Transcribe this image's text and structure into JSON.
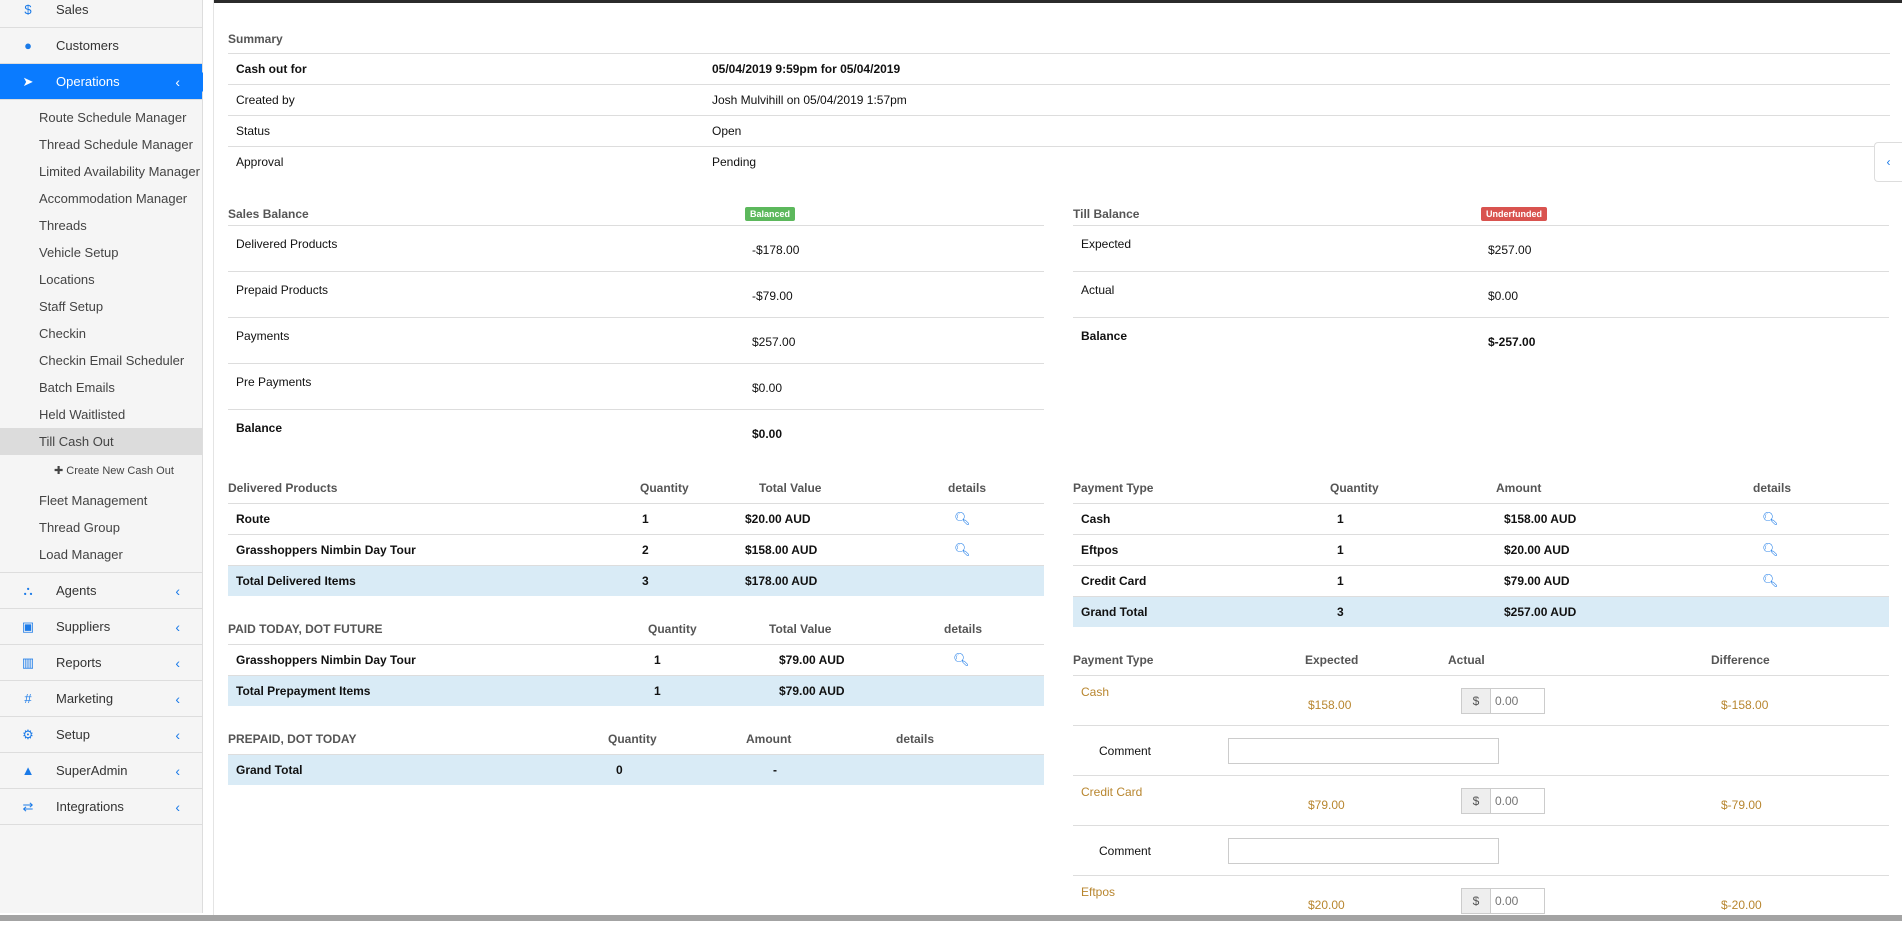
{
  "sidebar": {
    "top_items": [
      {
        "label": "Sales",
        "icon": "dollar-icon"
      },
      {
        "label": "Customers",
        "icon": "user-icon"
      },
      {
        "label": "Operations",
        "icon": "paper-plane-icon"
      }
    ],
    "sub_items": [
      "Route Schedule Manager",
      "Thread Schedule Manager",
      "Limited Availability Manager",
      "Accommodation Manager",
      "Threads",
      "Vehicle Setup",
      "Locations",
      "Staff Setup",
      "Checkin",
      "Checkin Email Scheduler",
      "Batch Emails",
      "Held Waitlisted",
      "Till Cash Out"
    ],
    "create_label": "Create New Cash Out",
    "sub_items2": [
      "Fleet Management",
      "Thread Group",
      "Load Manager"
    ],
    "bottom_items": [
      {
        "label": "Agents"
      },
      {
        "label": "Suppliers"
      },
      {
        "label": "Reports"
      },
      {
        "label": "Marketing"
      },
      {
        "label": "Setup"
      },
      {
        "label": "SuperAdmin"
      },
      {
        "label": "Integrations"
      }
    ]
  },
  "summary": {
    "title": "Summary",
    "rows": [
      {
        "label": "Cash out for",
        "value": "05/04/2019 9:59pm for 05/04/2019",
        "bold": true
      },
      {
        "label": "Created by",
        "value": "Josh Mulvihill on 05/04/2019 1:57pm"
      },
      {
        "label": "Status",
        "value": "Open"
      },
      {
        "label": "Approval",
        "value": "Pending"
      }
    ]
  },
  "sales_balance": {
    "title": "Sales Balance",
    "badge": "Balanced",
    "badge_color": "#5cb85c",
    "rows": [
      {
        "label": "Delivered Products",
        "value": "-$178.00"
      },
      {
        "label": "Prepaid Products",
        "value": "-$79.00"
      },
      {
        "label": "Payments",
        "value": "$257.00"
      },
      {
        "label": "Pre Payments",
        "value": "$0.00"
      },
      {
        "label": "Balance",
        "value": "$0.00"
      }
    ]
  },
  "till_balance": {
    "title": "Till Balance",
    "badge": "Underfunded",
    "badge_color": "#d9534f",
    "rows": [
      {
        "label": "Expected",
        "value": "$257.00"
      },
      {
        "label": "Actual",
        "value": "$0.00"
      },
      {
        "label": "Balance",
        "value": "$-257.00"
      }
    ]
  },
  "delivered": {
    "headers": [
      "Delivered Products",
      "Quantity",
      "Total Value",
      "details"
    ],
    "rows": [
      [
        "Route",
        "1",
        "$20.00 AUD"
      ],
      [
        "Grasshoppers Nimbin Day Tour",
        "2",
        "$158.00 AUD"
      ]
    ],
    "total": [
      "Total Delivered Items",
      "3",
      "$178.00 AUD"
    ]
  },
  "paid_today": {
    "headers": [
      "PAID TODAY, DOT FUTURE",
      "Quantity",
      "Total Value",
      "details"
    ],
    "rows": [
      [
        "Grasshoppers Nimbin Day Tour",
        "1",
        "$79.00 AUD"
      ]
    ],
    "total": [
      "Total Prepayment Items",
      "1",
      "$79.00 AUD"
    ]
  },
  "prepaid": {
    "headers": [
      "PREPAID, DOT TODAY",
      "Quantity",
      "Amount",
      "details"
    ],
    "total": [
      "Grand Total",
      "0",
      "-"
    ]
  },
  "payments": {
    "headers": [
      "Payment Type",
      "Quantity",
      "Amount",
      "details"
    ],
    "rows": [
      [
        "Cash",
        "1",
        "$158.00 AUD"
      ],
      [
        "Eftpos",
        "1",
        "$20.00 AUD"
      ],
      [
        "Credit Card",
        "1",
        "$79.00 AUD"
      ]
    ],
    "total": [
      "Grand Total",
      "3",
      "$257.00 AUD"
    ]
  },
  "reconcile": {
    "headers": [
      "Payment Type",
      "Expected",
      "Actual",
      "Difference"
    ],
    "comment_label": "Comment",
    "currency": "$",
    "placeholder": "0.00",
    "rows": [
      {
        "type": "Cash",
        "expected": "$158.00",
        "diff": "$-158.00"
      },
      {
        "type": "Credit Card",
        "expected": "$79.00",
        "diff": "$-79.00"
      },
      {
        "type": "Eftpos",
        "expected": "$20.00",
        "diff": "$-20.00"
      }
    ]
  }
}
